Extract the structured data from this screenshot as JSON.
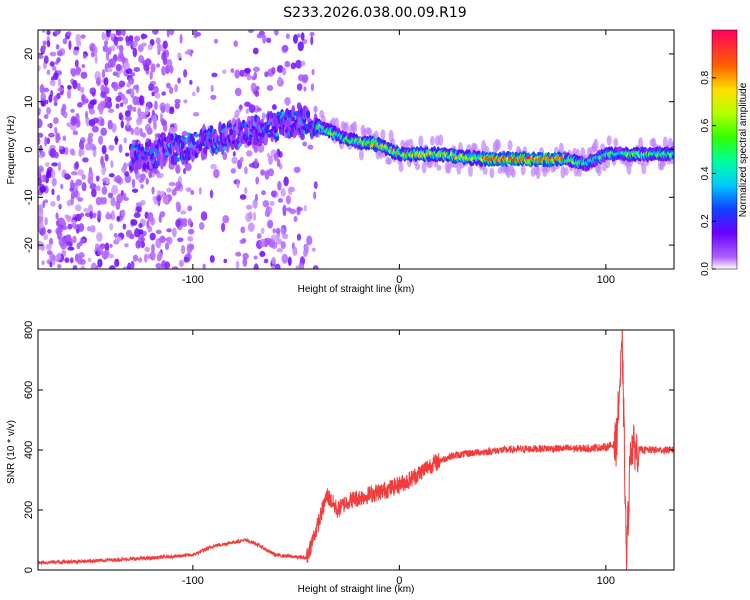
{
  "title": "S233.2026.038.00.09.R19",
  "colors": {
    "snr_line": "#f03c3c",
    "axis": "#000000",
    "background": "#ffffff"
  },
  "chart_data": [
    {
      "type": "heatmap",
      "xlabel": "Height of straight line (km)",
      "ylabel": "Frequency (Hz)",
      "xlim": [
        -175,
        133
      ],
      "ylim": [
        -25,
        25
      ],
      "xticks": [
        -100,
        0,
        100
      ],
      "yticks": [
        -20,
        -10,
        0,
        10,
        20
      ],
      "colorbar": {
        "label": "Normalized spectral amplitude",
        "range": [
          0,
          1
        ],
        "ticks": [
          "0.0",
          "0.2",
          "0.4",
          "0.6",
          "0.8"
        ],
        "colormap": "rainbow"
      },
      "ridge": {
        "description_points_x": [
          -120,
          -100,
          -80,
          -60,
          -45,
          -35,
          -25,
          -10,
          0,
          20,
          40,
          60,
          80,
          90,
          100,
          110,
          133
        ],
        "description_points_freq": [
          -1,
          1,
          3,
          5,
          6,
          4,
          2,
          1,
          -1,
          -1,
          -2,
          -2,
          -2,
          -3,
          -1,
          -1,
          -1
        ]
      }
    },
    {
      "type": "line",
      "xlabel": "Height of straight line (km)",
      "ylabel": "SNR (10 * v/v)",
      "xlim": [
        -175,
        133
      ],
      "ylim": [
        0,
        800
      ],
      "xticks": [
        -100,
        0,
        100
      ],
      "yticks": [
        0,
        200,
        400,
        600,
        800
      ],
      "series": [
        {
          "x": [
            -175,
            -150,
            -120,
            -100,
            -90,
            -75,
            -70,
            -60,
            -45,
            -40,
            -35,
            -30,
            -25,
            -15,
            -5,
            5,
            15,
            25,
            35,
            50,
            70,
            90,
            100,
            105,
            108,
            110,
            112,
            115,
            133
          ],
          "y": [
            25,
            30,
            40,
            50,
            80,
            100,
            90,
            50,
            40,
            140,
            250,
            200,
            230,
            250,
            270,
            300,
            350,
            380,
            390,
            400,
            405,
            405,
            410,
            420,
            750,
            20,
            420,
            400,
            400
          ]
        }
      ]
    }
  ]
}
